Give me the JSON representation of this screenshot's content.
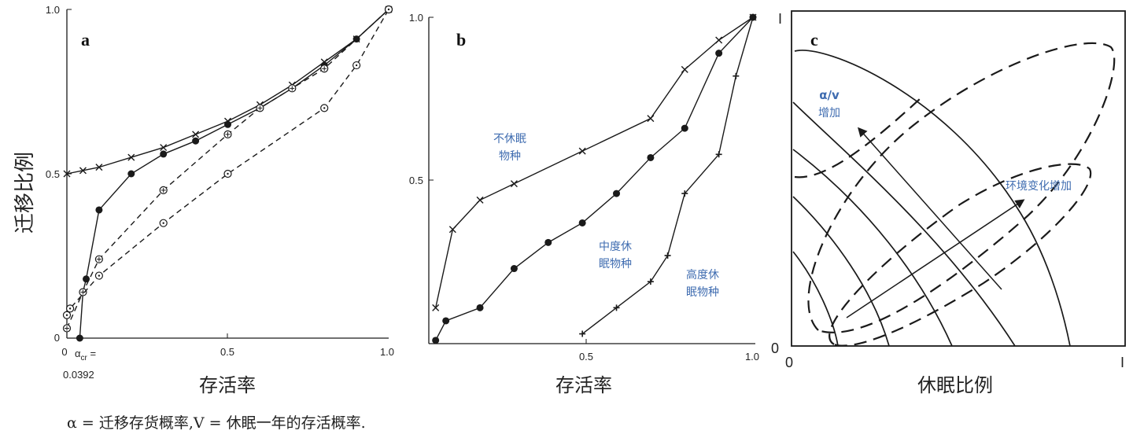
{
  "colors": {
    "axis": "#1a1a1a",
    "line": "#1a1a1a",
    "annotation": "#3f6cb0"
  },
  "chart_data": [
    {
      "type": "line",
      "panel": "a",
      "xlabel": "存活率",
      "ylabel": "迁移比例",
      "xlim": [
        0,
        1
      ],
      "ylim": [
        0,
        1
      ],
      "x_ticks": [
        "0",
        "0.5",
        "1.0"
      ],
      "y_ticks": [
        "0",
        "0.5",
        "1.0"
      ],
      "annotation_line1": "α",
      "annotation_sub": "cr",
      "annotation_eq": " =",
      "annotation_line2": "0.0392",
      "series": [
        {
          "marker": "x",
          "dash": "solid",
          "points": [
            [
              0.0,
              0.5
            ],
            [
              0.05,
              0.51
            ],
            [
              0.1,
              0.52
            ],
            [
              0.2,
              0.55
            ],
            [
              0.3,
              0.58
            ],
            [
              0.4,
              0.62
            ],
            [
              0.5,
              0.66
            ],
            [
              0.6,
              0.71
            ],
            [
              0.7,
              0.77
            ],
            [
              0.8,
              0.84
            ],
            [
              0.9,
              0.91
            ],
            [
              1.0,
              1.0
            ]
          ]
        },
        {
          "marker": "filled-circle",
          "dash": "solid",
          "points": [
            [
              0.04,
              0.0
            ],
            [
              0.05,
              0.14
            ],
            [
              0.06,
              0.18
            ],
            [
              0.1,
              0.39
            ],
            [
              0.2,
              0.5
            ],
            [
              0.3,
              0.56
            ],
            [
              0.4,
              0.6
            ],
            [
              0.5,
              0.65
            ],
            [
              0.6,
              0.7
            ],
            [
              0.7,
              0.76
            ],
            [
              0.8,
              0.83
            ],
            [
              0.9,
              0.91
            ],
            [
              1.0,
              1.0
            ]
          ]
        },
        {
          "marker": "circle-plus",
          "dash": "dashed",
          "points": [
            [
              0.0,
              0.03
            ],
            [
              0.05,
              0.14
            ],
            [
              0.1,
              0.24
            ],
            [
              0.3,
              0.45
            ],
            [
              0.5,
              0.62
            ],
            [
              0.6,
              0.7
            ],
            [
              0.7,
              0.76
            ],
            [
              0.8,
              0.82
            ],
            [
              1.0,
              1.0
            ]
          ]
        },
        {
          "marker": "circle-dot",
          "dash": "dashed",
          "points": [
            [
              0.0,
              0.07
            ],
            [
              0.01,
              0.09
            ],
            [
              0.1,
              0.19
            ],
            [
              0.3,
              0.35
            ],
            [
              0.5,
              0.5
            ],
            [
              0.8,
              0.7
            ],
            [
              0.9,
              0.83
            ],
            [
              1.0,
              1.0
            ]
          ]
        }
      ]
    },
    {
      "type": "line",
      "panel": "b",
      "xlabel": "存活率",
      "xlim": [
        0.05,
        1.0
      ],
      "ylim": [
        0,
        1
      ],
      "x_ticks": [
        "0.5",
        "1.0"
      ],
      "y_ticks": [
        "0.5",
        "1.0"
      ],
      "series": [
        {
          "name": "不休眠物种",
          "label_lines": [
            "不休眠",
            "物种"
          ],
          "marker": "x",
          "points": [
            [
              0.07,
              0.11
            ],
            [
              0.12,
              0.35
            ],
            [
              0.2,
              0.44
            ],
            [
              0.3,
              0.49
            ],
            [
              0.5,
              0.59
            ],
            [
              0.7,
              0.69
            ],
            [
              0.8,
              0.84
            ],
            [
              0.9,
              0.93
            ],
            [
              1.0,
              1.0
            ]
          ]
        },
        {
          "name": "中度休眠物种",
          "label_lines": [
            "中度休",
            "眠物种"
          ],
          "marker": "filled-circle",
          "points": [
            [
              0.07,
              0.01
            ],
            [
              0.1,
              0.07
            ],
            [
              0.2,
              0.11
            ],
            [
              0.3,
              0.23
            ],
            [
              0.4,
              0.31
            ],
            [
              0.5,
              0.37
            ],
            [
              0.6,
              0.46
            ],
            [
              0.7,
              0.57
            ],
            [
              0.8,
              0.66
            ],
            [
              0.9,
              0.89
            ],
            [
              1.0,
              1.0
            ]
          ]
        },
        {
          "name": "高度休眠物种",
          "label_lines": [
            "高度休",
            "眠物种"
          ],
          "marker": "plus",
          "points": [
            [
              0.5,
              0.03
            ],
            [
              0.6,
              0.11
            ],
            [
              0.7,
              0.19
            ],
            [
              0.75,
              0.27
            ],
            [
              0.8,
              0.46
            ],
            [
              0.9,
              0.58
            ],
            [
              0.95,
              0.82
            ],
            [
              1.0,
              1.0
            ]
          ]
        }
      ]
    },
    {
      "type": "diagram",
      "panel": "c",
      "xlabel": "休眠比例",
      "x_ticks": [
        "0",
        "I"
      ],
      "y_ticks": [
        "0",
        "I"
      ],
      "arrow1_label": [
        "α/v",
        "增加"
      ],
      "arrow2_label": [
        "环境变化增加"
      ]
    }
  ],
  "caption": "α = 迁移存货概率,V = 休眠一年的存活概率."
}
